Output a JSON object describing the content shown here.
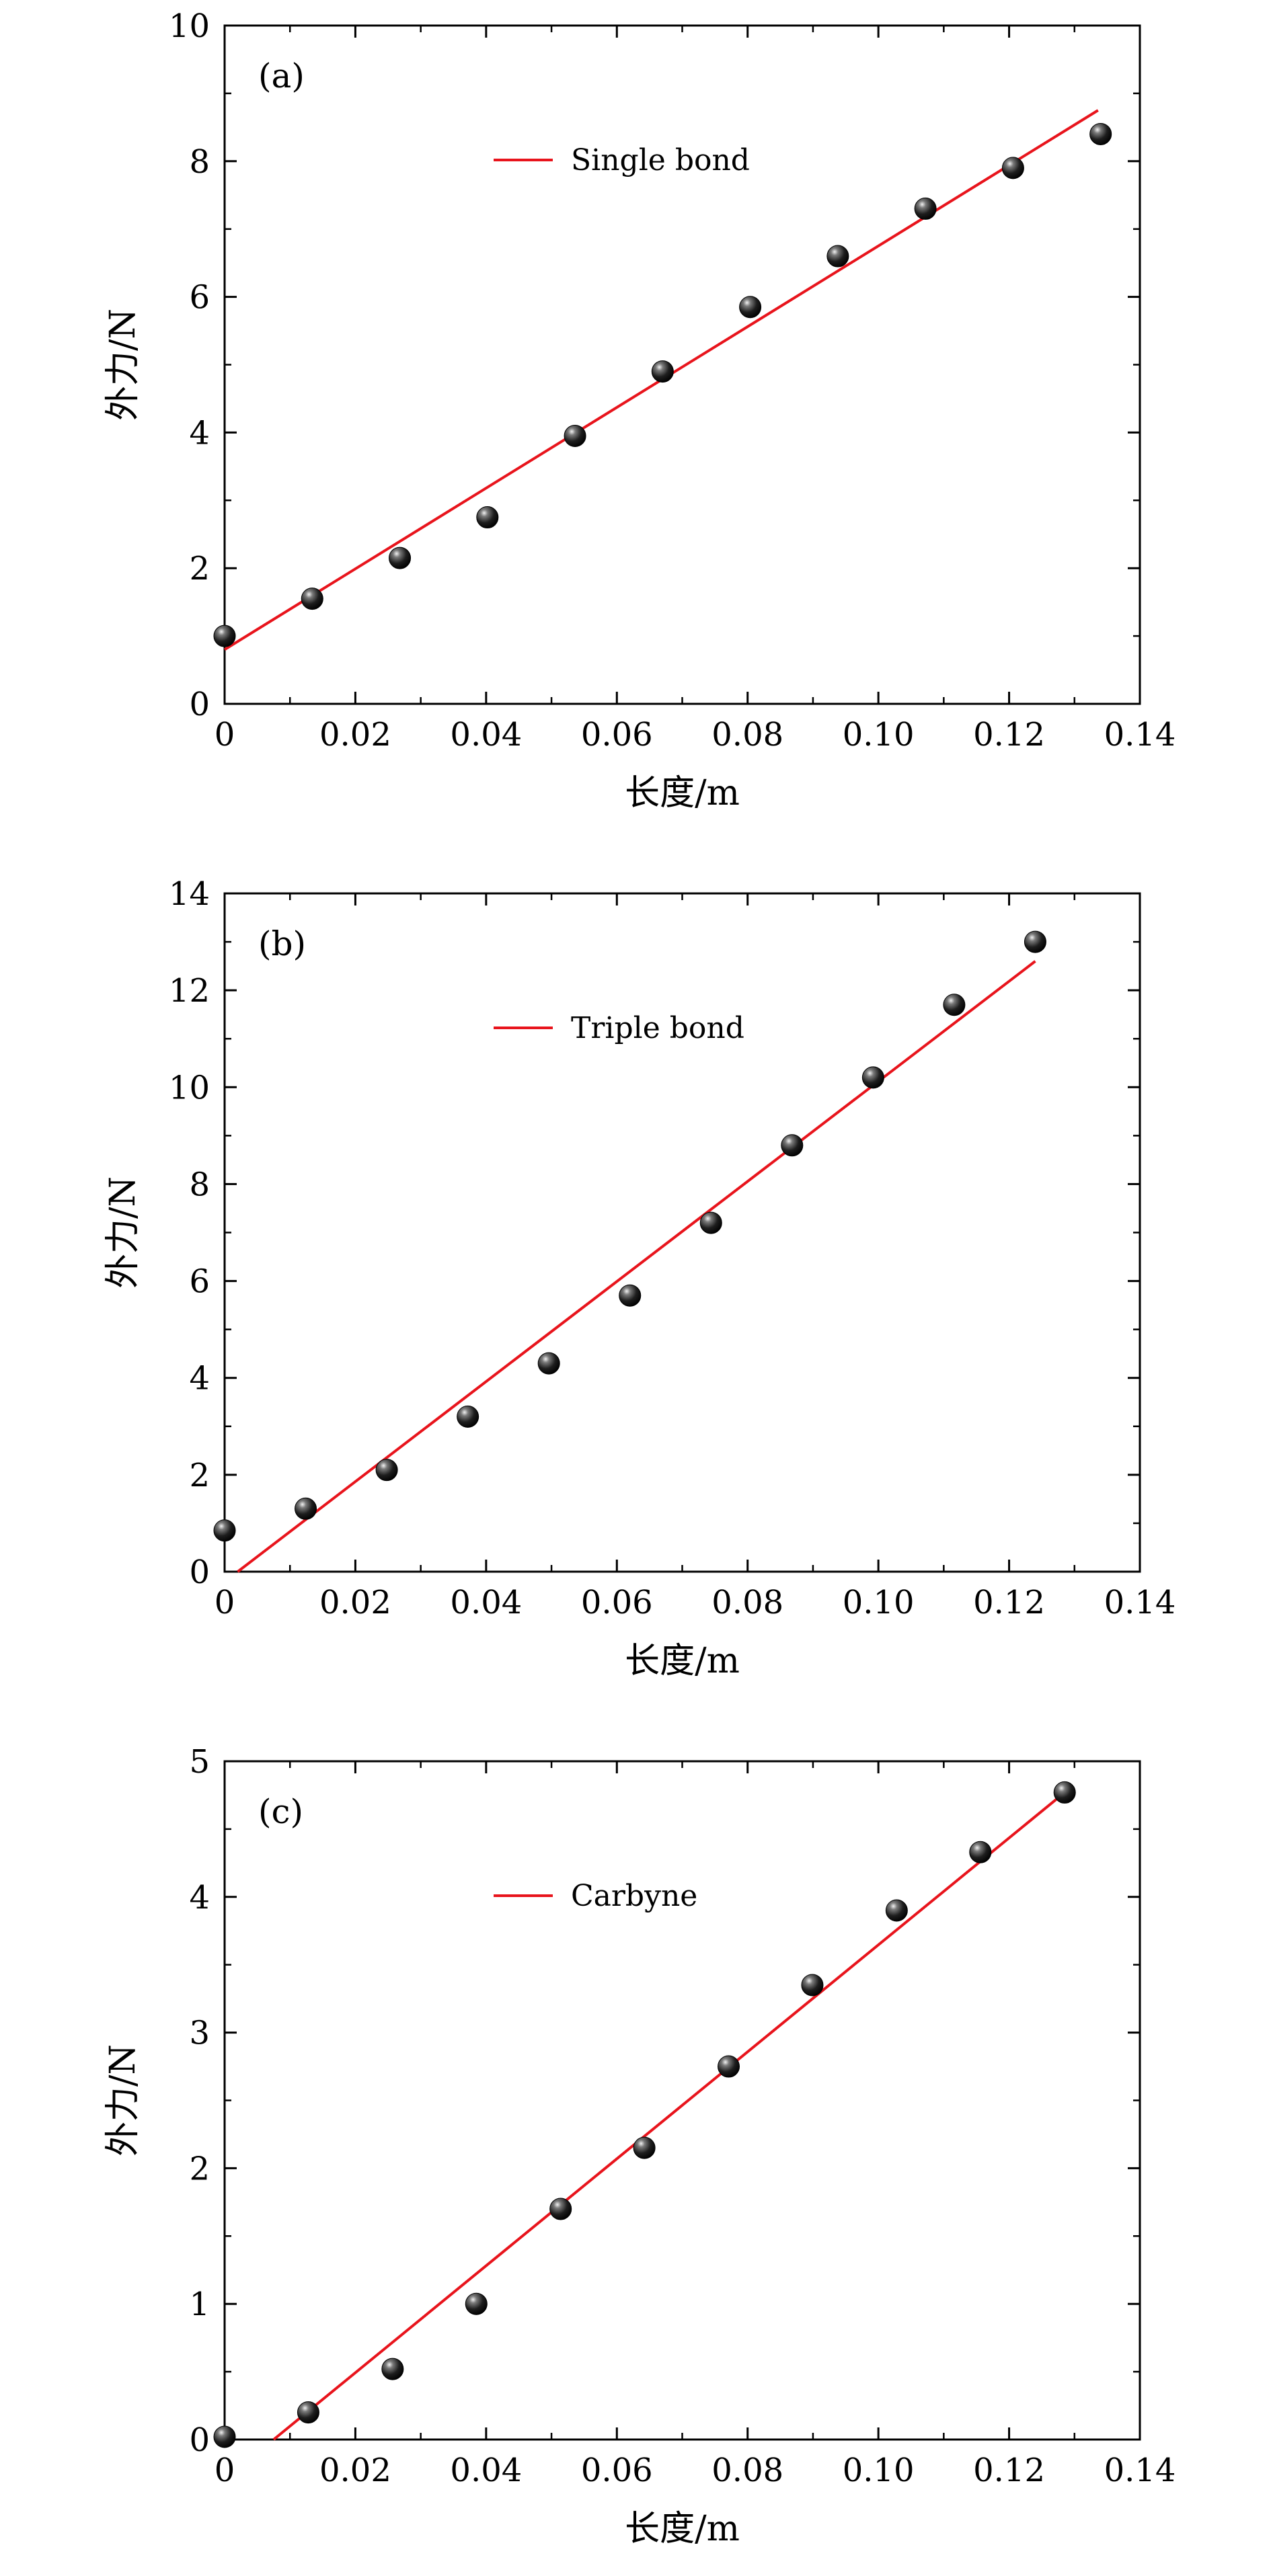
{
  "chart_data": [
    {
      "type": "scatter",
      "panel_label": "(a)",
      "xlabel": "长度/m",
      "ylabel": "外力/N",
      "xlim": [
        0,
        0.14
      ],
      "ylim": [
        0,
        10
      ],
      "xticks": [
        "0",
        "0.02",
        "0.04",
        "0.06",
        "0.08",
        "0.10",
        "0.12",
        "0.14"
      ],
      "yticks": [
        "0",
        "2",
        "4",
        "6",
        "8",
        "10"
      ],
      "grid": false,
      "legend": {
        "placement": "top-center",
        "entries": [
          "Single bond"
        ]
      },
      "colors": {
        "points": "#111111",
        "fit": "#e8141c"
      },
      "series": [
        {
          "kind": "points",
          "x": [
            0,
            0.0134,
            0.0268,
            0.0402,
            0.0536,
            0.067,
            0.0804,
            0.0938,
            0.1072,
            0.1206,
            0.134
          ],
          "y": [
            1.0,
            1.55,
            2.15,
            2.75,
            3.95,
            4.9,
            5.85,
            6.6,
            7.3,
            7.9,
            8.4
          ]
        },
        {
          "kind": "line",
          "name": "Single bond",
          "x": [
            0,
            0.1336
          ],
          "y": [
            0.8,
            8.75
          ]
        }
      ]
    },
    {
      "type": "scatter",
      "panel_label": "(b)",
      "xlabel": "长度/m",
      "ylabel": "外力/N",
      "xlim": [
        0,
        0.14
      ],
      "ylim": [
        0,
        14
      ],
      "xticks": [
        "0",
        "0.02",
        "0.04",
        "0.06",
        "0.08",
        "0.10",
        "0.12",
        "0.14"
      ],
      "yticks": [
        "0",
        "2",
        "4",
        "6",
        "8",
        "10",
        "12",
        "14"
      ],
      "grid": false,
      "legend": {
        "placement": "top-center",
        "entries": [
          "Triple bond"
        ]
      },
      "colors": {
        "points": "#111111",
        "fit": "#e8141c"
      },
      "series": [
        {
          "kind": "points",
          "x": [
            0,
            0.0124,
            0.0248,
            0.0372,
            0.0496,
            0.062,
            0.0744,
            0.0868,
            0.0992,
            0.1116,
            0.124
          ],
          "y": [
            0.85,
            1.3,
            2.1,
            3.2,
            4.3,
            5.7,
            7.2,
            8.8,
            10.2,
            11.7,
            13.0
          ]
        },
        {
          "kind": "line",
          "name": "Triple bond",
          "x": [
            0.002,
            0.124
          ],
          "y": [
            0,
            12.6
          ]
        }
      ]
    },
    {
      "type": "scatter",
      "panel_label": "(c)",
      "xlabel": "长度/m",
      "ylabel": "外力/N",
      "xlim": [
        0,
        0.14
      ],
      "ylim": [
        0,
        5
      ],
      "xticks": [
        "0",
        "0.02",
        "0.04",
        "0.06",
        "0.08",
        "0.10",
        "0.12",
        "0.14"
      ],
      "yticks": [
        "0",
        "1",
        "2",
        "3",
        "4",
        "5"
      ],
      "grid": false,
      "legend": {
        "placement": "top-center",
        "entries": [
          "Carbyne"
        ]
      },
      "colors": {
        "points": "#111111",
        "fit": "#e8141c"
      },
      "series": [
        {
          "kind": "points",
          "x": [
            0,
            0.0128,
            0.0257,
            0.0385,
            0.0514,
            0.0642,
            0.0771,
            0.0899,
            0.1028,
            0.1156,
            0.1285
          ],
          "y": [
            0.02,
            0.2,
            0.52,
            1.0,
            1.7,
            2.15,
            2.75,
            3.35,
            3.9,
            4.33,
            4.77
          ]
        },
        {
          "kind": "line",
          "name": "Carbyne",
          "x": [
            0.0075,
            0.1285
          ],
          "y": [
            0,
            4.77
          ]
        }
      ]
    }
  ]
}
